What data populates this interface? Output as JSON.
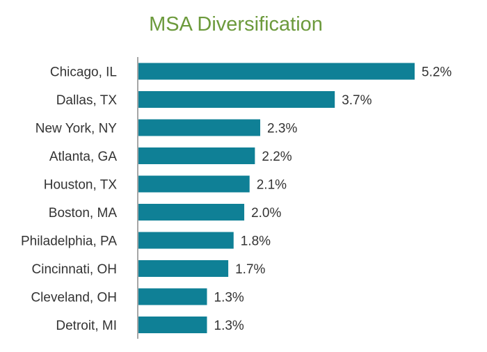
{
  "chart_data": {
    "type": "bar",
    "orientation": "horizontal",
    "title": "MSA Diversification",
    "xlabel": "",
    "ylabel": "",
    "categories": [
      "Chicago, IL",
      "Dallas, TX",
      "New York, NY",
      "Atlanta, GA",
      "Houston, TX",
      "Boston, MA",
      "Philadelphia, PA",
      "Cincinnati, OH",
      "Cleveland, OH",
      "Detroit, MI"
    ],
    "values": [
      5.2,
      3.7,
      2.3,
      2.2,
      2.1,
      2.0,
      1.8,
      1.7,
      1.3,
      1.3
    ],
    "value_labels": [
      "5.2%",
      "3.7%",
      "2.3%",
      "2.2%",
      "2.1%",
      "2.0%",
      "1.8%",
      "1.7%",
      "1.3%",
      "1.3%"
    ],
    "xlim": [
      0,
      5.2
    ],
    "grid": false,
    "legend": "none"
  },
  "colors": {
    "bar": "#0f8096",
    "title": "#6c9a3c",
    "axis": "#a6a6a6",
    "text": "#333333"
  }
}
